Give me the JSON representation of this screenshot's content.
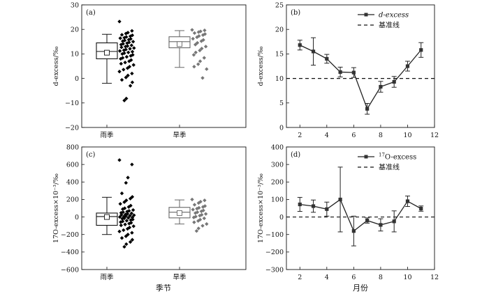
{
  "figure": {
    "x_group_label": "季节",
    "x_month_label": "月份"
  },
  "chart_data": [
    {
      "id": "a",
      "panel_label": "(a)",
      "type": "box",
      "ylabel": "d-excess/‰",
      "ylim": [
        -20,
        30
      ],
      "yticks": [
        -20,
        -10,
        0,
        10,
        20,
        30
      ],
      "categories": [
        "雨季",
        "旱季"
      ],
      "boxes": [
        {
          "category": "雨季",
          "whisker_low": -2,
          "q1": 8,
          "median": 11,
          "mean": 10.5,
          "q3": 14.5,
          "whisker_high": 18,
          "color": "#111111",
          "points": [
            23.2,
            19.4,
            18.7,
            18.3,
            17.8,
            17.6,
            17.2,
            16.9,
            16.6,
            16.4,
            16.1,
            15.8,
            15.5,
            15.2,
            15.0,
            14.7,
            14.4,
            14.1,
            13.8,
            13.5,
            13.2,
            13.0,
            12.7,
            12.4,
            12.1,
            11.8,
            11.5,
            11.2,
            10.9,
            10.6,
            10.3,
            10.0,
            9.6,
            9.2,
            8.8,
            8.4,
            8.0,
            7.5,
            7.0,
            6.5,
            6.0,
            5.5,
            4.8,
            4.2,
            3.6,
            2.8,
            2.0,
            1.2,
            0.4,
            -0.6,
            -1.6,
            -3.0,
            -8.2,
            -9.0
          ]
        },
        {
          "category": "旱季",
          "whisker_low": 4.5,
          "q1": 12.5,
          "median": 15,
          "mean": 14,
          "q3": 17,
          "whisker_high": 19.5,
          "color": "#777777",
          "points": [
            19.8,
            19.6,
            19.2,
            18.9,
            18.5,
            18.1,
            17.7,
            17.3,
            16.8,
            16.2,
            15.7,
            15.2,
            14.5,
            13.8,
            13.0,
            12.2,
            11.4,
            10.6,
            9.6,
            8.4,
            7.0,
            5.8,
            4.8,
            3.8,
            0.2
          ]
        }
      ]
    },
    {
      "id": "b",
      "panel_label": "(b)",
      "type": "line",
      "ylabel": "d-excess/‰",
      "xlim": [
        1,
        12
      ],
      "xticks": [
        2,
        4,
        6,
        8,
        10,
        12
      ],
      "ylim": [
        0,
        25
      ],
      "yticks": [
        0,
        5,
        10,
        15,
        20,
        25
      ],
      "series": [
        {
          "name": "d-excess",
          "x": [
            2,
            3,
            4,
            5,
            6,
            7,
            8,
            9,
            10,
            11
          ],
          "y": [
            16.8,
            15.5,
            14.0,
            11.3,
            11.2,
            3.8,
            8.3,
            9.3,
            12.5,
            15.8
          ],
          "err": [
            1.0,
            2.8,
            0.9,
            1.0,
            1.0,
            1.1,
            1.1,
            1.1,
            1.0,
            1.5
          ]
        }
      ],
      "baseline": {
        "name": "基准线",
        "y": 10
      }
    },
    {
      "id": "c",
      "panel_label": "(c)",
      "type": "box",
      "ylabel": "17O-excess×10⁻³/‰",
      "ylim": [
        -600,
        800
      ],
      "yticks": [
        -600,
        -400,
        -200,
        0,
        200,
        400,
        600,
        800
      ],
      "categories": [
        "雨季",
        "旱季"
      ],
      "boxes": [
        {
          "category": "雨季",
          "whisker_low": -200,
          "q1": -95,
          "median": 5,
          "mean": 0,
          "q3": 45,
          "whisker_high": 225,
          "color": "#111111",
          "points": [
            650,
            600,
            450,
            390,
            270,
            230,
            210,
            190,
            170,
            150,
            130,
            115,
            100,
            90,
            80,
            70,
            62,
            55,
            48,
            42,
            36,
            30,
            25,
            20,
            15,
            10,
            5,
            0,
            -5,
            -10,
            -15,
            -20,
            -28,
            -35,
            -42,
            -50,
            -58,
            -66,
            -75,
            -85,
            -95,
            -105,
            -120,
            -135,
            -150,
            -165,
            -180,
            -200,
            -220,
            -240,
            -260,
            -285,
            -310,
            -340
          ]
        },
        {
          "category": "旱季",
          "whisker_low": -80,
          "q1": -10,
          "median": 55,
          "mean": 45,
          "q3": 110,
          "whisker_high": 195,
          "color": "#777777",
          "points": [
            200,
            190,
            175,
            160,
            140,
            125,
            115,
            105,
            95,
            85,
            75,
            65,
            55,
            45,
            35,
            25,
            15,
            5,
            -5,
            -15,
            -30,
            -45,
            -60,
            -80,
            -100,
            -130,
            -160
          ]
        }
      ]
    },
    {
      "id": "d",
      "panel_label": "(d)",
      "type": "line",
      "ylabel": "17O-excess×10⁻³/‰",
      "xlim": [
        1,
        12
      ],
      "xticks": [
        2,
        4,
        6,
        8,
        10,
        12
      ],
      "ylim": [
        -300,
        400
      ],
      "yticks": [
        -300,
        -200,
        -100,
        0,
        100,
        200,
        300,
        400
      ],
      "series": [
        {
          "name": "17O-excess",
          "x": [
            2,
            3,
            4,
            5,
            6,
            7,
            8,
            9,
            10,
            11
          ],
          "y": [
            72,
            62,
            45,
            100,
            -80,
            -20,
            -45,
            -25,
            90,
            48
          ],
          "err": [
            40,
            35,
            40,
            185,
            85,
            15,
            35,
            60,
            30,
            15
          ]
        }
      ],
      "baseline": {
        "name": "基准线",
        "y": 0
      }
    }
  ]
}
